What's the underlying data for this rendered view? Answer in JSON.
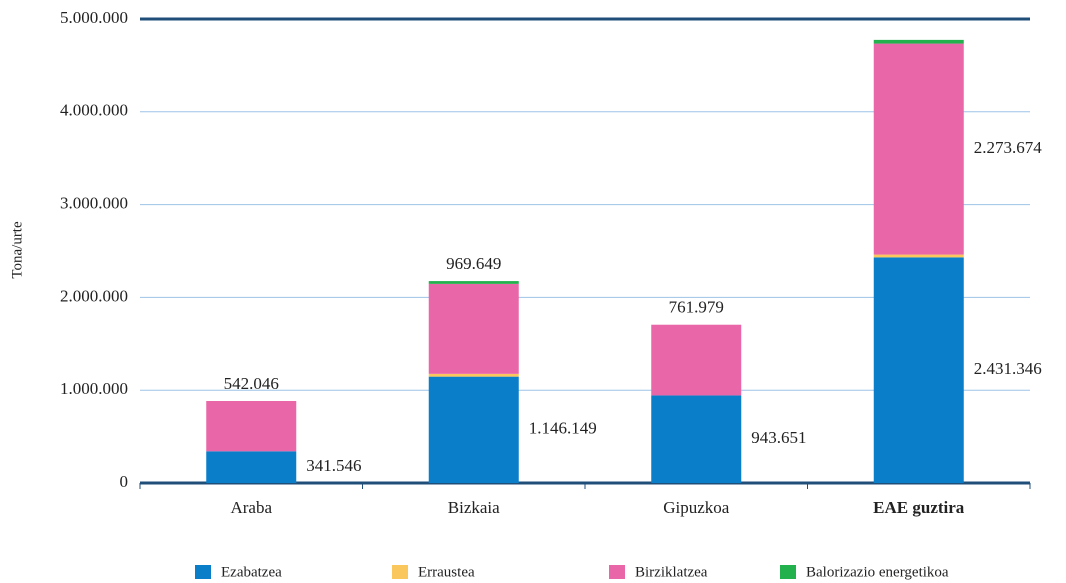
{
  "chart_data": {
    "type": "stacked_bar",
    "y_label": "Tona/urte",
    "categories": [
      "Araba",
      "Bizkaia",
      "Gipuzkoa",
      "EAE guztira"
    ],
    "series": [
      {
        "name": "Ezabatzea",
        "color": "#0a7ec8",
        "values": [
          341546,
          1146149,
          943651,
          2431346
        ],
        "value_labels": [
          "341.546",
          "1.146.149",
          "943.651",
          "2.431.346"
        ]
      },
      {
        "name": "Erraustea",
        "color": "#f9c75c",
        "values": [
          0,
          30000,
          0,
          30000
        ]
      },
      {
        "name": "Birziklatzea",
        "color": "#e966a8",
        "values": [
          542046,
          969649,
          761979,
          2273674
        ],
        "value_labels": [
          "542.046",
          "969.649",
          "761.979",
          "2.273.674"
        ]
      },
      {
        "name": "Balorizazio energetikoa",
        "color": "#22b14c",
        "values": [
          0,
          30000,
          0,
          40000
        ]
      }
    ],
    "ylim": [
      0,
      5000000
    ],
    "yticks": [
      0,
      {
        "value": 1000000,
        "label": "1.000.000"
      },
      {
        "value": 2000000,
        "label": "2.000.000"
      },
      {
        "value": 3000000,
        "label": "3.000.000"
      },
      {
        "value": 4000000,
        "label": "4.000.000"
      },
      {
        "value": 5000000,
        "label": "5.000.000"
      }
    ],
    "grid": true,
    "legend": "bottom"
  }
}
